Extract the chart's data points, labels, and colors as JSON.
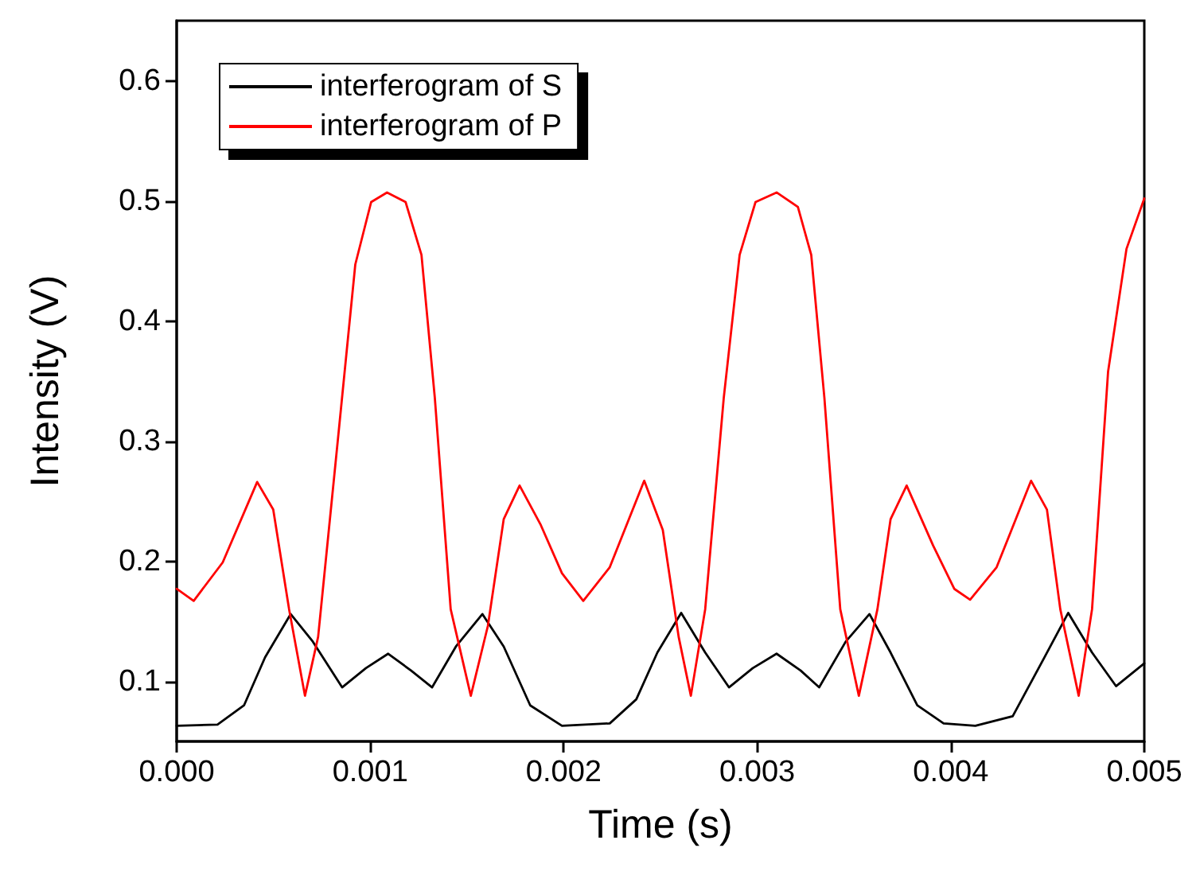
{
  "chart_data": {
    "type": "line",
    "xlabel": "Time (s)",
    "ylabel": "Intensity (V)",
    "xlim": [
      0,
      0.005
    ],
    "xticks": [
      {
        "value": 0,
        "label": "0.000"
      },
      0.001,
      0.002,
      0.003,
      0.004,
      0.005
    ],
    "ylim": [
      0.05,
      0.65
    ],
    "yticks": [
      0.1,
      0.2,
      0.3,
      0.4,
      0.5,
      0.6
    ],
    "grid": false,
    "legend": "top left",
    "marker": "none",
    "line_style": "solid",
    "series": [
      {
        "name": "interferogram of S",
        "color": "#000000",
        "x": [
          0,
          0.000211,
          0.000348,
          0.000457,
          0.000589,
          0.000704,
          0.000855,
          0.000978,
          0.001093,
          0.001211,
          0.00132,
          0.001443,
          0.00158,
          0.00169,
          0.001827,
          0.001991,
          0.002238,
          0.002375,
          0.002484,
          0.002607,
          0.002731,
          0.002854,
          0.002977,
          0.0031,
          0.003224,
          0.00332,
          0.003457,
          0.00358,
          0.003689,
          0.003827,
          0.003963,
          0.004127,
          0.00432,
          0.004484,
          0.004607,
          0.00473,
          0.004854,
          0.005
        ],
        "values": [
          0.063,
          0.064,
          0.08,
          0.12,
          0.156,
          0.133,
          0.095,
          0.111,
          0.123,
          0.109,
          0.095,
          0.129,
          0.156,
          0.129,
          0.08,
          0.063,
          0.065,
          0.085,
          0.124,
          0.157,
          0.124,
          0.095,
          0.111,
          0.123,
          0.109,
          0.095,
          0.133,
          0.156,
          0.124,
          0.08,
          0.065,
          0.063,
          0.071,
          0.12,
          0.157,
          0.124,
          0.096,
          0.115
        ]
      },
      {
        "name": "interferogram of P",
        "color": "#ff0000",
        "x": [
          0,
          8.8e-05,
          0.000238,
          0.000416,
          0.000499,
          0.000581,
          0.000663,
          0.000731,
          0.000841,
          0.000923,
          0.001005,
          0.001087,
          0.001183,
          0.001265,
          0.001334,
          0.001416,
          0.00152,
          0.001608,
          0.00169,
          0.001772,
          0.001882,
          0.001991,
          0.002101,
          0.002238,
          0.002416,
          0.002512,
          0.002594,
          0.002657,
          0.002731,
          0.002827,
          0.002909,
          0.002991,
          0.0031,
          0.00321,
          0.003279,
          0.003347,
          0.003429,
          0.003525,
          0.003621,
          0.003689,
          0.003772,
          0.003909,
          0.004018,
          0.0041,
          0.004237,
          0.004415,
          0.004497,
          0.004566,
          0.004661,
          0.00473,
          0.004813,
          0.004908,
          0.005
        ],
        "values": [
          0.177,
          0.167,
          0.199,
          0.266,
          0.243,
          0.16,
          0.088,
          0.137,
          0.314,
          0.447,
          0.499,
          0.507,
          0.499,
          0.455,
          0.336,
          0.16,
          0.088,
          0.146,
          0.235,
          0.263,
          0.23,
          0.19,
          0.167,
          0.195,
          0.267,
          0.226,
          0.137,
          0.088,
          0.16,
          0.336,
          0.455,
          0.499,
          0.507,
          0.495,
          0.455,
          0.336,
          0.16,
          0.088,
          0.16,
          0.235,
          0.263,
          0.213,
          0.177,
          0.168,
          0.195,
          0.267,
          0.243,
          0.16,
          0.088,
          0.16,
          0.358,
          0.46,
          0.502
        ]
      }
    ]
  }
}
